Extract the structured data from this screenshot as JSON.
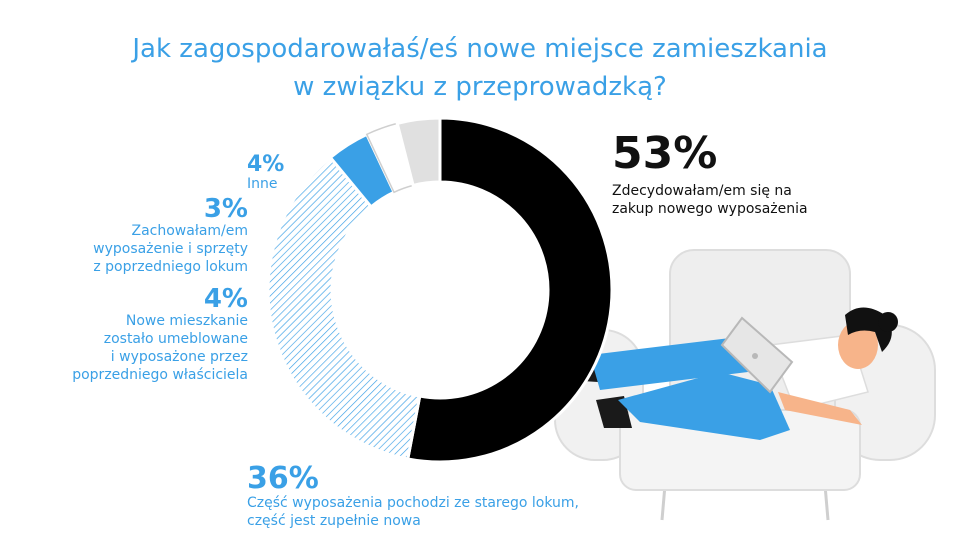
{
  "title_lines": [
    "Jak zagospodarowałaś/eś nowe miejsce zamieszkania",
    "w związku z przeprowadzką?"
  ],
  "chart_data": {
    "type": "pie",
    "variant": "donut",
    "slices": [
      {
        "value": 53,
        "label": "53%",
        "description": "Zdecydowałam/em się na\nzakup nowego wyposażenia",
        "color": "#000000",
        "fill": "solid"
      },
      {
        "value": 36,
        "label": "36%",
        "description": "Część wyposażenia pochodzi ze starego lokum,\nczęść jest zupełnie nowa",
        "color": "#3aa0e6",
        "fill": "hatched"
      },
      {
        "value": 4,
        "label": "4%",
        "description": "Nowe mieszkanie\nzostało umeblowane\ni wyposażone przez\npoprzedniego właściciela",
        "color": "#3aa0e6",
        "fill": "solid"
      },
      {
        "value": 3,
        "label": "3%",
        "description": "Zachowałam/em\nwyposażenie i sprzęty\nz poprzedniego lokum",
        "color": "#ffffff",
        "fill": "outline"
      },
      {
        "value": 4,
        "label": "4%",
        "description": "Inne",
        "color": "#e0e0e0",
        "fill": "solid"
      }
    ]
  },
  "illustration": {
    "name": "person-with-laptop-on-armchair",
    "colors": {
      "chair": "#eeeeee",
      "pants": "#3aa0e6",
      "skin": "#f7b48a",
      "hair": "#111111",
      "laptop": "#e6e6e6"
    }
  }
}
